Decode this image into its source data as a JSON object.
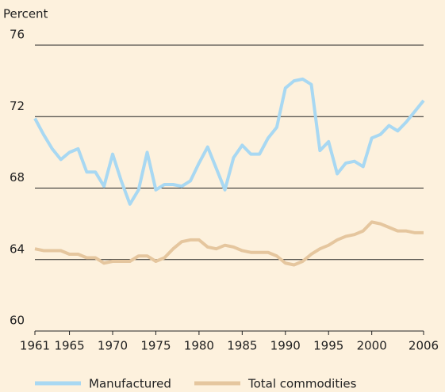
{
  "chart_data": {
    "type": "line",
    "y_axis_label": "Percent",
    "x": [
      1961,
      1962,
      1963,
      1964,
      1965,
      1966,
      1967,
      1968,
      1969,
      1970,
      1971,
      1972,
      1973,
      1974,
      1975,
      1976,
      1977,
      1978,
      1979,
      1980,
      1981,
      1982,
      1983,
      1984,
      1985,
      1986,
      1987,
      1988,
      1989,
      1990,
      1991,
      1992,
      1993,
      1994,
      1995,
      1996,
      1997,
      1998,
      1999,
      2000,
      2001,
      2002,
      2003,
      2004,
      2005,
      2006
    ],
    "series": [
      {
        "name": "Manufactured",
        "color": "#a8d8f2",
        "values": [
          71.9,
          71.0,
          70.2,
          69.6,
          70.0,
          70.2,
          68.9,
          68.9,
          68.1,
          69.9,
          68.4,
          67.1,
          67.9,
          70.0,
          67.9,
          68.2,
          68.2,
          68.1,
          68.4,
          69.4,
          70.3,
          69.1,
          67.9,
          69.7,
          70.4,
          69.9,
          69.9,
          70.8,
          71.4,
          73.6,
          74.0,
          74.1,
          73.8,
          70.1,
          70.6,
          68.8,
          69.4,
          69.5,
          69.2,
          70.8,
          71.0,
          71.5,
          71.2,
          71.7,
          72.3,
          72.9
        ]
      },
      {
        "name": "Total commodities",
        "color": "#e5c69e",
        "values": [
          64.6,
          64.5,
          64.5,
          64.5,
          64.3,
          64.3,
          64.1,
          64.1,
          63.8,
          63.9,
          63.9,
          63.9,
          64.2,
          64.2,
          63.9,
          64.1,
          64.6,
          65.0,
          65.1,
          65.1,
          64.7,
          64.6,
          64.8,
          64.7,
          64.5,
          64.4,
          64.4,
          64.4,
          64.2,
          63.8,
          63.7,
          63.9,
          64.3,
          64.6,
          64.8,
          65.1,
          65.3,
          65.4,
          65.6,
          66.1,
          66.0,
          65.8,
          65.6,
          65.6,
          65.5,
          65.5
        ]
      }
    ],
    "xlim": [
      1961,
      2006
    ],
    "xticks": [
      1961,
      1965,
      1970,
      1975,
      1980,
      1985,
      1990,
      1995,
      2000,
      2006
    ],
    "ylim": [
      60,
      76
    ],
    "yticks": [
      60,
      64,
      68,
      72,
      76
    ],
    "grid": true,
    "legend": "bottom"
  }
}
